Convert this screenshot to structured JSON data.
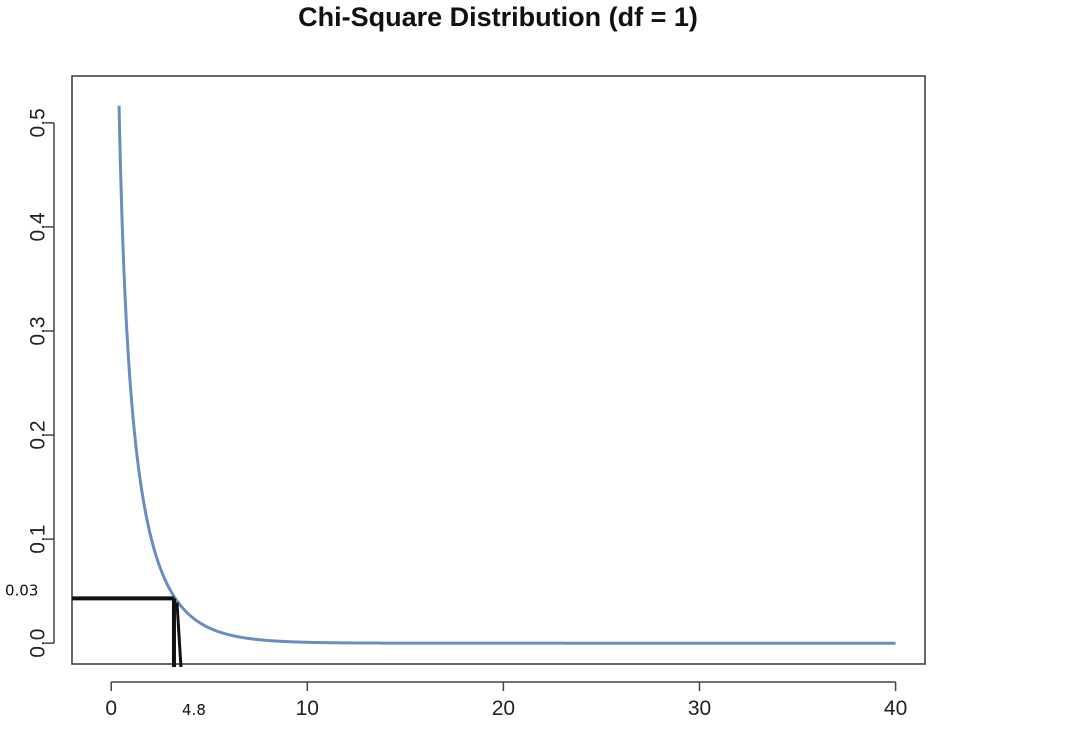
{
  "chart_data": {
    "type": "line",
    "title": "Chi-Square Distribution (df = 1)",
    "xlabel": "",
    "ylabel": "",
    "xlim": [
      -2,
      41.5
    ],
    "ylim": [
      -0.02,
      0.545
    ],
    "x_ticks": [
      0,
      10,
      20,
      30,
      40
    ],
    "x_tick_labels": [
      "0",
      "10",
      "20",
      "30",
      "40"
    ],
    "y_ticks": [
      0.0,
      0.1,
      0.2,
      0.3,
      0.4,
      0.5
    ],
    "y_tick_labels": [
      "0.0",
      "0.1",
      "0.2",
      "0.3",
      "0.4",
      "0.5"
    ],
    "grid": false,
    "series": [
      {
        "color": "#6b8cbf",
        "x_range": [
          0.4,
          40
        ],
        "function": "chi-square density, df = 1"
      }
    ],
    "annotation": {
      "x": 3.2,
      "y": 0.043,
      "x_label": "4.8",
      "y_label": "0.03",
      "color": "#111111"
    }
  }
}
